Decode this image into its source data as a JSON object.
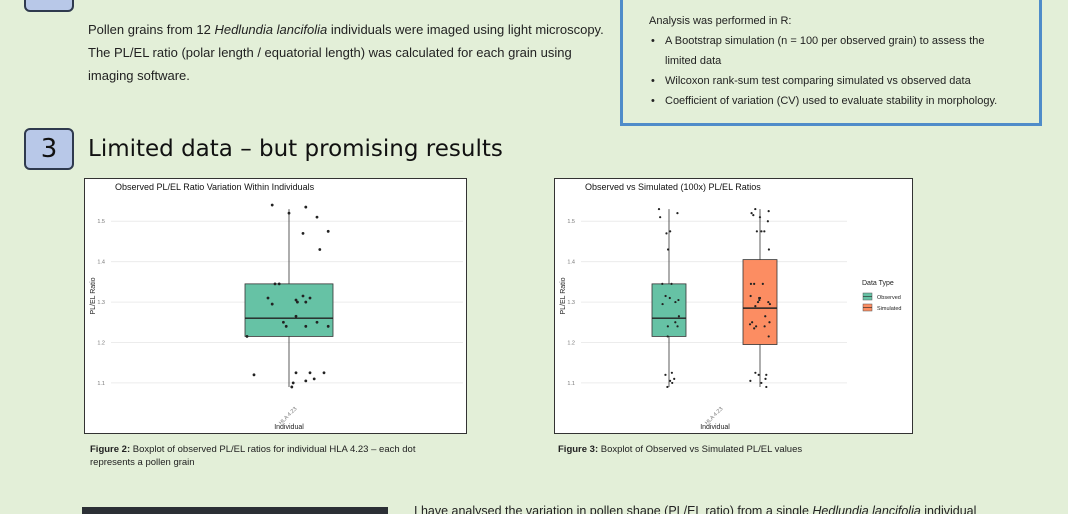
{
  "methods": {
    "line1_prefix": "Pollen grains from 12 ",
    "species": "Hedlundia lancifolia",
    "line1_suffix": " individuals were imaged using light microscopy.",
    "line2": "The PL/EL ratio (polar length / equatorial length) was calculated for each grain using",
    "line3": "imaging software."
  },
  "analysis": {
    "heading": "Analysis was performed in R:",
    "items": [
      "A Bootstrap simulation (n = 100 per observed grain) to assess the limited data",
      "Wilcoxon rank-sum test comparing simulated vs observed data",
      "Coefficient of variation (CV) used to evaluate stability in morphology."
    ]
  },
  "section": {
    "number": "3",
    "title": "Limited data – but promising results"
  },
  "figure2": {
    "caption_bold": "Figure 2:",
    "caption_text": " Boxplot of observed PL/EL ratios for individual HLA 4.23 – each dot represents a pollen grain"
  },
  "figure3": {
    "caption_bold": "Figure 3:",
    "caption_text": " Boxplot of Observed vs Simulated PL/EL values"
  },
  "bottom": {
    "text_prefix": "I have analysed the variation in pollen shape (PL/EL ratio) from a single ",
    "species": "Hedlundia lancifolia",
    "text_suffix": " individual"
  },
  "chart_data": [
    {
      "type": "box",
      "title": "Observed PL/EL Ratio Variation Within Individuals",
      "xlabel": "Individual",
      "ylabel": "PL/EL Ratio",
      "categories": [
        "HLA 4.23"
      ],
      "yticks": [
        "1.1",
        "1.2",
        "1.3",
        "1.4",
        "1.5"
      ],
      "ylim": [
        1.08,
        1.55
      ],
      "boxes": [
        {
          "category": "HLA 4.23",
          "q1": 1.215,
          "median": 1.26,
          "q3": 1.345,
          "whisker_low": 1.09,
          "whisker_high": 1.53,
          "color": "#66c2a5"
        }
      ],
      "points": [
        {
          "x": 0.0,
          "y": 1.52
        },
        {
          "x": 0.12,
          "y": 1.535
        },
        {
          "x": -0.12,
          "y": 1.54
        },
        {
          "x": 0.2,
          "y": 1.51
        },
        {
          "x": 0.28,
          "y": 1.475
        },
        {
          "x": 0.1,
          "y": 1.47
        },
        {
          "x": 0.22,
          "y": 1.43
        },
        {
          "x": -0.1,
          "y": 1.345
        },
        {
          "x": -0.07,
          "y": 1.345
        },
        {
          "x": 0.1,
          "y": 1.315
        },
        {
          "x": -0.15,
          "y": 1.31
        },
        {
          "x": 0.05,
          "y": 1.305
        },
        {
          "x": 0.15,
          "y": 1.31
        },
        {
          "x": 0.12,
          "y": 1.3
        },
        {
          "x": 0.06,
          "y": 1.3
        },
        {
          "x": -0.12,
          "y": 1.295
        },
        {
          "x": 0.05,
          "y": 1.265
        },
        {
          "x": -0.04,
          "y": 1.25
        },
        {
          "x": 0.2,
          "y": 1.25
        },
        {
          "x": -0.02,
          "y": 1.24
        },
        {
          "x": 0.12,
          "y": 1.24
        },
        {
          "x": 0.28,
          "y": 1.24
        },
        {
          "x": -0.3,
          "y": 1.215
        },
        {
          "x": 0.05,
          "y": 1.125
        },
        {
          "x": 0.15,
          "y": 1.125
        },
        {
          "x": 0.25,
          "y": 1.125
        },
        {
          "x": -0.25,
          "y": 1.12
        },
        {
          "x": 0.18,
          "y": 1.11
        },
        {
          "x": 0.12,
          "y": 1.105
        },
        {
          "x": 0.03,
          "y": 1.1
        },
        {
          "x": 0.02,
          "y": 1.09
        }
      ],
      "legend": "none",
      "grid": true
    },
    {
      "type": "box",
      "title": "Observed vs Simulated (100x) PL/EL Ratios",
      "xlabel": "Individual",
      "ylabel": "PL/EL Ratio",
      "categories": [
        "HLA 4.23"
      ],
      "yticks": [
        "1.1",
        "1.2",
        "1.3",
        "1.4",
        "1.5"
      ],
      "ylim": [
        1.08,
        1.55
      ],
      "legend_title": "Data Type",
      "legend_position": "right",
      "series": [
        {
          "name": "Observed",
          "color": "#66c2a5",
          "box": {
            "q1": 1.215,
            "median": 1.26,
            "q3": 1.345,
            "whisker_low": 1.09,
            "whisker_high": 1.53
          },
          "points": [
            1.53,
            1.52,
            1.51,
            1.475,
            1.47,
            1.43,
            1.345,
            1.345,
            1.315,
            1.31,
            1.305,
            1.3,
            1.295,
            1.265,
            1.25,
            1.24,
            1.24,
            1.215,
            1.125,
            1.12,
            1.11,
            1.105,
            1.1,
            1.09
          ]
        },
        {
          "name": "Simulated",
          "color": "#fc8d62",
          "box": {
            "q1": 1.195,
            "median": 1.285,
            "q3": 1.405,
            "whisker_low": 1.09,
            "whisker_high": 1.53
          },
          "points": [
            1.53,
            1.525,
            1.52,
            1.515,
            1.51,
            1.5,
            1.475,
            1.475,
            1.475,
            1.43,
            1.345,
            1.345,
            1.345,
            1.315,
            1.31,
            1.31,
            1.305,
            1.3,
            1.3,
            1.295,
            1.29,
            1.265,
            1.25,
            1.25,
            1.245,
            1.24,
            1.24,
            1.235,
            1.215,
            1.125,
            1.12,
            1.12,
            1.11,
            1.105,
            1.1,
            1.09
          ]
        }
      ],
      "grid": true
    }
  ]
}
